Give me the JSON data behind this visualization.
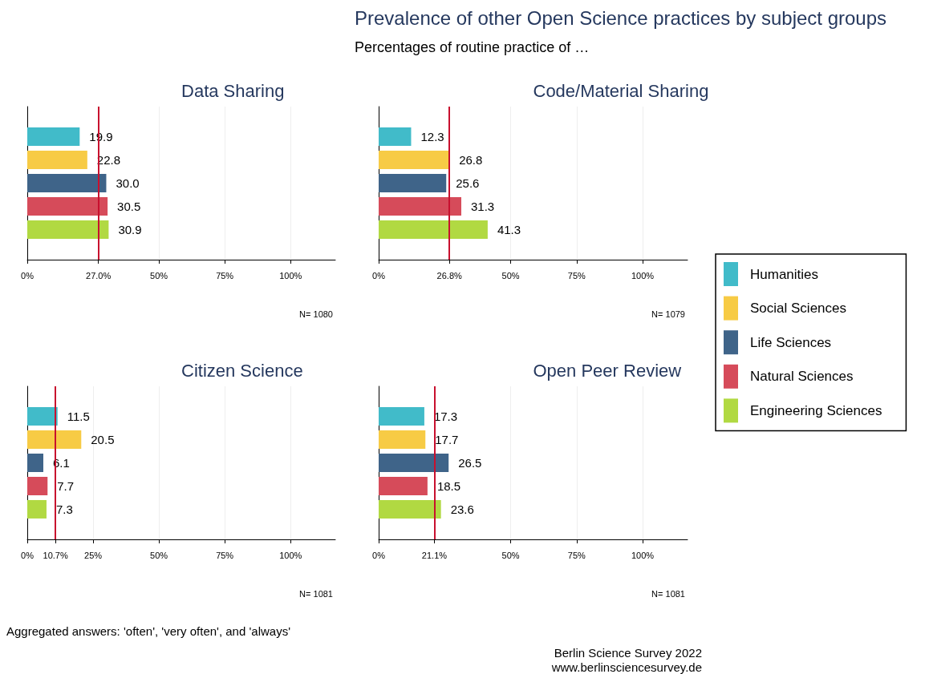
{
  "chart_data": [
    {
      "type": "bar",
      "orientation": "horizontal",
      "title": "Data Sharing",
      "categories": [
        null
      ],
      "series": [
        {
          "name": "Humanities",
          "color": "#41bbc9",
          "values": [
            19.9
          ],
          "value_labels": [
            "19.9"
          ]
        },
        {
          "name": "Social Sciences",
          "color": "#f7cb45",
          "values": [
            22.8
          ],
          "value_labels": [
            "22.8"
          ]
        },
        {
          "name": "Life Sciences",
          "color": "#3f6489",
          "values": [
            30.0
          ],
          "value_labels": [
            "30.0"
          ]
        },
        {
          "name": "Natural Sciences",
          "color": "#d64b5a",
          "values": [
            30.5
          ],
          "value_labels": [
            "30.5"
          ]
        },
        {
          "name": "Engineering Sciences",
          "color": "#b1d942",
          "values": [
            30.9
          ],
          "value_labels": [
            "30.9"
          ]
        }
      ],
      "xlim": [
        0,
        117
      ],
      "xticks": [
        {
          "value": 0,
          "label": "0%"
        },
        {
          "value": 27.0,
          "label": "27.0%"
        },
        {
          "value": 50,
          "label": "50%"
        },
        {
          "value": 75,
          "label": "75%"
        },
        {
          "value": 100,
          "label": "100%"
        }
      ],
      "ref_lines": [
        {
          "axis": "x",
          "value": 27.0,
          "color": "#c8102e"
        }
      ],
      "grid": "x",
      "legend": "right",
      "annotations": [
        "N= 1080",
        "Prevalence of other Open Science practices by subject groups",
        "Percentages of routine practice of …",
        "Aggregated answers: 'often', 'very often', and 'always'",
        "Berlin Science Survey 2022",
        "www.berlinsciencesurvey.de"
      ]
    },
    {
      "type": "bar",
      "orientation": "horizontal",
      "title": "Code/Material Sharing",
      "categories": [
        null
      ],
      "series": [
        {
          "color": "#41bbc9",
          "values": [
            12.3
          ],
          "value_labels": [
            "12.3"
          ]
        },
        {
          "color": "#f7cb45",
          "values": [
            26.8
          ],
          "value_labels": [
            "26.8"
          ]
        },
        {
          "color": "#3f6489",
          "values": [
            25.6
          ],
          "value_labels": [
            "25.6"
          ]
        },
        {
          "color": "#d64b5a",
          "values": [
            31.3
          ],
          "value_labels": [
            "31.3"
          ]
        },
        {
          "color": "#b1d942",
          "values": [
            41.3
          ],
          "value_labels": [
            "41.3"
          ]
        }
      ],
      "xlim": [
        0,
        117
      ],
      "xticks": [
        {
          "value": 0,
          "label": "0%"
        },
        {
          "value": 26.8,
          "label": "26.8%"
        },
        {
          "value": 50,
          "label": "50%"
        },
        {
          "value": 75,
          "label": "75%"
        },
        {
          "value": 100,
          "label": "100%"
        }
      ],
      "ref_lines": [
        {
          "axis": "x",
          "value": 26.8,
          "color": "#c8102e"
        }
      ],
      "grid": "x",
      "annotations": [
        "N= 1079"
      ]
    },
    {
      "type": "bar",
      "orientation": "horizontal",
      "title": "Citizen Science",
      "categories": [
        null
      ],
      "series": [
        {
          "color": "#41bbc9",
          "values": [
            11.5
          ],
          "value_labels": [
            "11.5"
          ]
        },
        {
          "color": "#f7cb45",
          "values": [
            20.5
          ],
          "value_labels": [
            "20.5"
          ]
        },
        {
          "color": "#3f6489",
          "values": [
            6.1
          ],
          "value_labels": [
            "6.1"
          ]
        },
        {
          "color": "#d64b5a",
          "values": [
            7.7
          ],
          "value_labels": [
            "7.7"
          ]
        },
        {
          "color": "#b1d942",
          "values": [
            7.3
          ],
          "value_labels": [
            "7.3"
          ]
        }
      ],
      "xlim": [
        0,
        117
      ],
      "xticks": [
        {
          "value": 0,
          "label": "0%"
        },
        {
          "value": 10.7,
          "label": "10.7%"
        },
        {
          "value": 25,
          "label": "25%"
        },
        {
          "value": 50,
          "label": "50%"
        },
        {
          "value": 75,
          "label": "75%"
        },
        {
          "value": 100,
          "label": "100%"
        }
      ],
      "ref_lines": [
        {
          "axis": "x",
          "value": 10.7,
          "color": "#c8102e"
        }
      ],
      "grid": "x",
      "annotations": [
        "N= 1081"
      ]
    },
    {
      "type": "bar",
      "orientation": "horizontal",
      "title": "Open Peer Review",
      "categories": [
        null
      ],
      "series": [
        {
          "color": "#41bbc9",
          "values": [
            17.3
          ],
          "value_labels": [
            "17.3"
          ]
        },
        {
          "color": "#f7cb45",
          "values": [
            17.7
          ],
          "value_labels": [
            "17.7"
          ]
        },
        {
          "color": "#3f6489",
          "values": [
            26.5
          ],
          "value_labels": [
            "26.5"
          ]
        },
        {
          "color": "#d64b5a",
          "values": [
            18.5
          ],
          "value_labels": [
            "18.5"
          ]
        },
        {
          "color": "#b1d942",
          "values": [
            23.6
          ],
          "value_labels": [
            "23.6"
          ]
        }
      ],
      "xlim": [
        0,
        117
      ],
      "xticks": [
        {
          "value": 0,
          "label": "0%"
        },
        {
          "value": 21.1,
          "label": "21.1%"
        },
        {
          "value": 50,
          "label": "50%"
        },
        {
          "value": 75,
          "label": "75%"
        },
        {
          "value": 100,
          "label": "100%"
        }
      ],
      "ref_lines": [
        {
          "axis": "x",
          "value": 21.1,
          "color": "#c8102e"
        }
      ],
      "grid": "x",
      "annotations": [
        "N= 1081"
      ]
    }
  ]
}
